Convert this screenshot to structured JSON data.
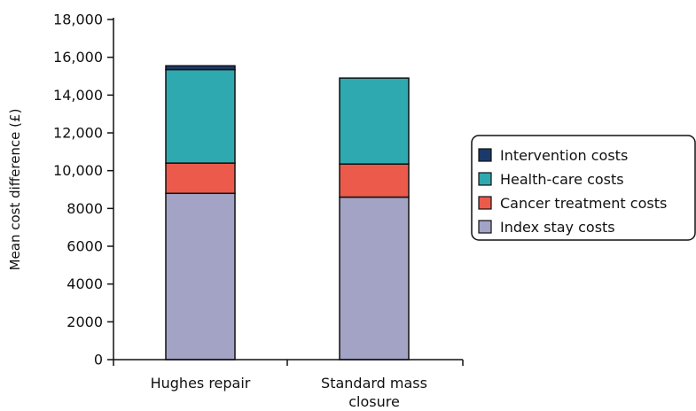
{
  "chart_data": {
    "type": "bar",
    "stacked": true,
    "ylabel": "Mean cost difference (£)",
    "xlabel": "",
    "ylim": [
      0,
      18000
    ],
    "yticks": [
      0,
      2000,
      4000,
      6000,
      8000,
      10000,
      12000,
      14000,
      16000,
      18000
    ],
    "ytick_labels": [
      "0",
      "2000",
      "4000",
      "6000",
      "8000",
      "10,000",
      "12,000",
      "14,000",
      "16,000",
      "18,000"
    ],
    "categories": [
      {
        "lines": [
          "Hughes repair"
        ]
      },
      {
        "lines": [
          "Standard mass",
          "closure"
        ]
      }
    ],
    "series": [
      {
        "name": "Index stay costs",
        "color": "#a3a3c6",
        "values": [
          8800,
          8600
        ]
      },
      {
        "name": "Cancer treatment costs",
        "color": "#ec5a4c",
        "values": [
          1600,
          1750
        ]
      },
      {
        "name": "Health-care costs",
        "color": "#2fa9b0",
        "values": [
          4950,
          4550
        ]
      },
      {
        "name": "Intervention costs",
        "color": "#1b3a6b",
        "values": [
          200,
          0
        ]
      }
    ],
    "legend": {
      "position": "right",
      "order": [
        "Intervention costs",
        "Health-care costs",
        "Cancer treatment costs",
        "Index stay costs"
      ]
    },
    "grid": false
  }
}
